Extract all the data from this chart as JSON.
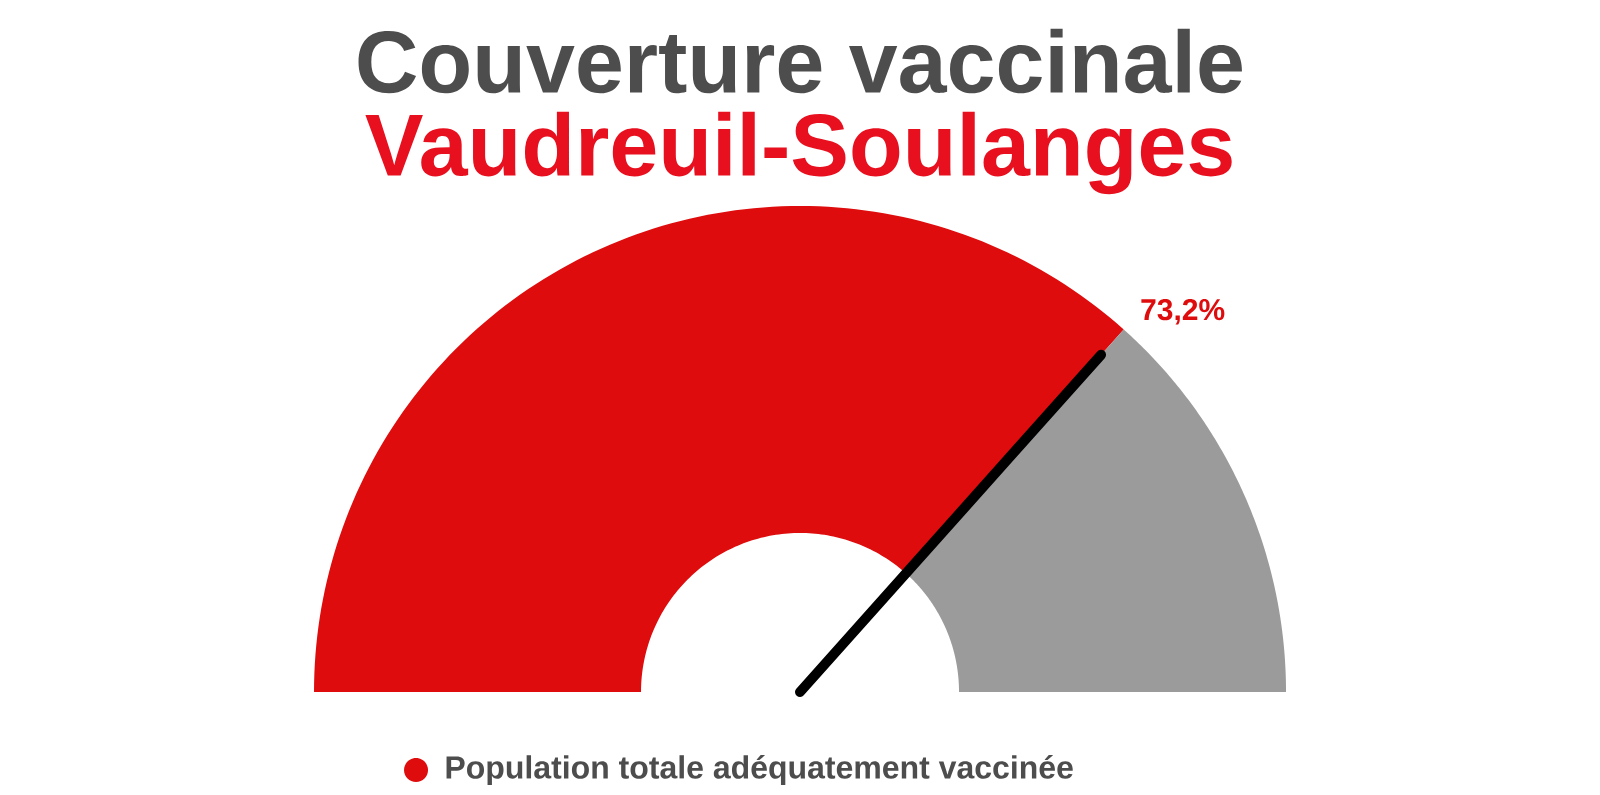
{
  "chart_data": {
    "type": "donut",
    "title": "Couverture vaccinale",
    "subtitle": "Vaudreuil-Soulanges",
    "categories": [
      "Population totale adéquatement vaccinée",
      null
    ],
    "values": [
      73.2,
      26.8
    ],
    "colors": [
      "#de0c0c",
      "#9b9b9b"
    ],
    "value_labels": [
      "73,2%",
      null
    ],
    "needle": "Population totale adéquatement vaccinée",
    "legend": "bottom"
  }
}
